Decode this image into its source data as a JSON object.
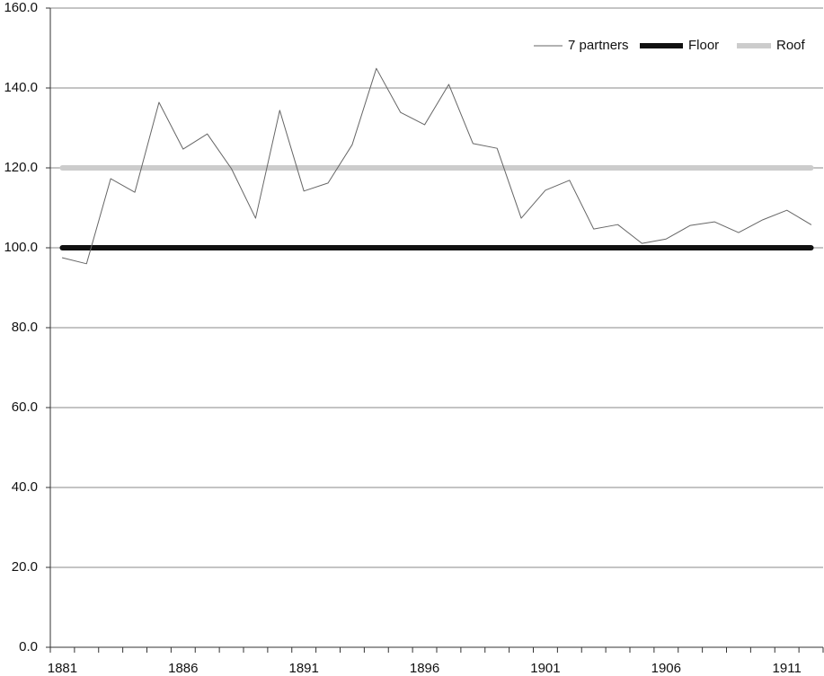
{
  "chart_data": {
    "type": "line",
    "categories": [
      "1881",
      null,
      null,
      null,
      null,
      "1886",
      null,
      null,
      null,
      null,
      "1891",
      null,
      null,
      null,
      null,
      "1896",
      null,
      null,
      null,
      null,
      "1901",
      null,
      null,
      null,
      null,
      "1906",
      null,
      null,
      null,
      null,
      "1911",
      null
    ],
    "series": [
      {
        "name": "7 partners",
        "color": "#666666",
        "values": [
          97.5,
          96.0,
          117.3,
          113.9,
          136.4,
          124.7,
          128.5,
          119.8,
          107.4,
          134.4,
          114.2,
          116.2,
          125.8,
          144.9,
          133.9,
          130.8,
          140.9,
          126.1,
          124.9,
          107.4,
          114.4,
          116.9,
          104.7,
          105.8,
          101.1,
          102.2,
          105.6,
          106.5,
          103.8,
          107.0,
          109.4,
          105.8
        ]
      },
      {
        "name": "Floor",
        "color": "#111111",
        "values": [
          100,
          100,
          100,
          100,
          100,
          100,
          100,
          100,
          100,
          100,
          100,
          100,
          100,
          100,
          100,
          100,
          100,
          100,
          100,
          100,
          100,
          100,
          100,
          100,
          100,
          100,
          100,
          100,
          100,
          100,
          100,
          100
        ]
      },
      {
        "name": "Roof",
        "color": "#cccccc",
        "values": [
          120,
          120,
          120,
          120,
          120,
          120,
          120,
          120,
          120,
          120,
          120,
          120,
          120,
          120,
          120,
          120,
          120,
          120,
          120,
          120,
          120,
          120,
          120,
          120,
          120,
          120,
          120,
          120,
          120,
          120,
          120,
          120
        ]
      }
    ],
    "ylim": [
      0,
      160
    ],
    "yticks": [
      {
        "value": 0,
        "label": "0.0"
      },
      {
        "value": 20,
        "label": "20.0"
      },
      {
        "value": 40,
        "label": "40.0"
      },
      {
        "value": 60,
        "label": "60.0"
      },
      {
        "value": 80,
        "label": "80.0"
      },
      {
        "value": 100,
        "label": "100.0"
      },
      {
        "value": 120,
        "label": "120.0"
      },
      {
        "value": 140,
        "label": "140.0"
      },
      {
        "value": 160,
        "label": "160.0"
      }
    ],
    "grid": true,
    "legend": "top-right"
  }
}
